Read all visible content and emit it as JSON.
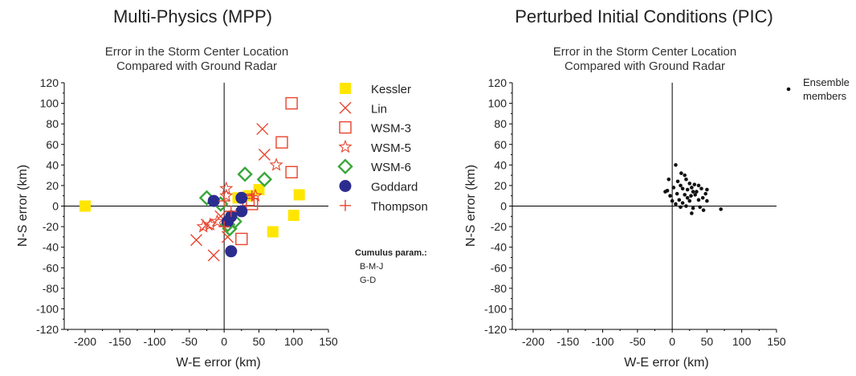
{
  "chart_data": [
    {
      "type": "scatter",
      "panel_title": "Multi-Physics  (MPP)",
      "title": "Error in the Storm Center Location",
      "subtitle": "Compared with Ground Radar",
      "xlabel": "W-E error (km)",
      "ylabel": "N-S error (km)",
      "xlim": [
        -230,
        150
      ],
      "ylim": [
        -120,
        120
      ],
      "xticks": [
        -200,
        -150,
        -100,
        -50,
        0,
        50,
        100,
        150
      ],
      "yticks": [
        120,
        100,
        80,
        60,
        40,
        20,
        0,
        -20,
        -40,
        -60,
        -80,
        -100,
        -120
      ],
      "legend_position": "right",
      "series": [
        {
          "name": "Kessler",
          "marker": "filled-square",
          "color": "#ffe600",
          "points": [
            [
              -200,
              0
            ],
            [
              70,
              -25
            ],
            [
              100,
              -9
            ],
            [
              108,
              11
            ],
            [
              20,
              8
            ],
            [
              35,
              10
            ],
            [
              50,
              16
            ]
          ]
        },
        {
          "name": "Lin",
          "marker": "x",
          "color": "#e8432c",
          "points": [
            [
              -40,
              -33
            ],
            [
              -15,
              -48
            ],
            [
              -25,
              -18
            ],
            [
              55,
              75
            ],
            [
              58,
              50
            ],
            [
              5,
              -30
            ],
            [
              -5,
              -10
            ]
          ]
        },
        {
          "name": "WSM-3",
          "marker": "open-square",
          "color": "#e8432c",
          "points": [
            [
              97,
              100
            ],
            [
              83,
              62
            ],
            [
              97,
              33
            ],
            [
              25,
              -32
            ],
            [
              40,
              2
            ],
            [
              35,
              6
            ]
          ]
        },
        {
          "name": "WSM-5",
          "marker": "star",
          "color": "#e8432c",
          "points": [
            [
              75,
              40
            ],
            [
              3,
              17
            ],
            [
              3,
              10
            ],
            [
              -30,
              -20
            ],
            [
              -20,
              -18
            ],
            [
              -10,
              -15
            ],
            [
              45,
              10
            ]
          ]
        },
        {
          "name": "WSM-6",
          "marker": "diamond",
          "color": "#3aa63a",
          "points": [
            [
              -25,
              8
            ],
            [
              30,
              31
            ],
            [
              58,
              26
            ],
            [
              -5,
              2
            ],
            [
              15,
              -15
            ],
            [
              8,
              -22
            ],
            [
              5,
              -18
            ]
          ]
        },
        {
          "name": "Goddard",
          "marker": "filled-circle",
          "color": "#2b2c8f",
          "points": [
            [
              -15,
              5
            ],
            [
              25,
              8
            ],
            [
              25,
              -5
            ],
            [
              10,
              -10
            ],
            [
              10,
              -44
            ],
            [
              5,
              -15
            ]
          ]
        },
        {
          "name": "Thompson",
          "marker": "plus",
          "color": "#e8432c",
          "points": [
            [
              40,
              10
            ],
            [
              10,
              -5
            ],
            [
              0,
              -20
            ],
            [
              0,
              5
            ]
          ]
        }
      ],
      "cumulus": {
        "title": "Cumulus param.:",
        "items": [
          "B-M-J",
          "G-D"
        ]
      }
    },
    {
      "type": "scatter",
      "panel_title": "Perturbed Initial Conditions (PIC)",
      "title": "Error in the Storm Center Location",
      "subtitle": "Compared with Ground Radar",
      "xlabel": "W-E error (km)",
      "ylabel": "N-S error (km)",
      "xlim": [
        -230,
        150
      ],
      "ylim": [
        -120,
        120
      ],
      "xticks": [
        -200,
        -150,
        -100,
        -50,
        0,
        50,
        100,
        150
      ],
      "yticks": [
        120,
        100,
        80,
        60,
        40,
        20,
        0,
        -20,
        -40,
        -60,
        -80,
        -100,
        -120
      ],
      "legend_position": "top-right",
      "series": [
        {
          "name": "Ensemble members",
          "marker": "dot",
          "color": "#111111",
          "legend_lines": [
            "Ensemble",
            "members"
          ],
          "points": [
            [
              5,
              40
            ],
            [
              13,
              32
            ],
            [
              18,
              30
            ],
            [
              8,
              24
            ],
            [
              20,
              26
            ],
            [
              25,
              22
            ],
            [
              -5,
              26
            ],
            [
              12,
              20
            ],
            [
              28,
              18
            ],
            [
              32,
              21
            ],
            [
              38,
              20
            ],
            [
              -7,
              15
            ],
            [
              2,
              18
            ],
            [
              15,
              17
            ],
            [
              22,
              16
            ],
            [
              35,
              14
            ],
            [
              42,
              17
            ],
            [
              48,
              12
            ],
            [
              50,
              16
            ],
            [
              -3,
              10
            ],
            [
              7,
              12
            ],
            [
              18,
              11
            ],
            [
              27,
              10
            ],
            [
              33,
              11
            ],
            [
              44,
              8
            ],
            [
              0,
              5
            ],
            [
              10,
              6
            ],
            [
              25,
              5
            ],
            [
              38,
              6
            ],
            [
              -10,
              14
            ],
            [
              12,
              -1
            ],
            [
              20,
              0
            ],
            [
              30,
              -2
            ],
            [
              45,
              -4
            ],
            [
              70,
              -3
            ],
            [
              5,
              2
            ],
            [
              15,
              3
            ],
            [
              28,
              -7
            ],
            [
              40,
              -1
            ],
            [
              22,
              8
            ],
            [
              30,
              14
            ],
            [
              50,
              5
            ]
          ]
        }
      ]
    }
  ]
}
